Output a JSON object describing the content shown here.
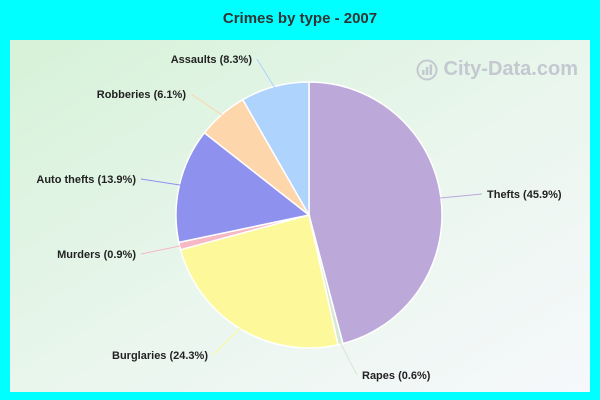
{
  "watermark": "City-Data.com",
  "chart_data": {
    "type": "pie",
    "title": "Crimes by type - 2007",
    "slices": [
      {
        "label": "Thefts (45.9%)",
        "value": 45.9,
        "color": "#bda8da"
      },
      {
        "label": "Rapes (0.6%)",
        "value": 0.6,
        "color": "#d7e8d2"
      },
      {
        "label": "Burglaries (24.3%)",
        "value": 24.3,
        "color": "#fdf99a"
      },
      {
        "label": "Murders (0.9%)",
        "value": 0.9,
        "color": "#f7b8c6"
      },
      {
        "label": "Auto thefts (13.9%)",
        "value": 13.9,
        "color": "#8f91ef"
      },
      {
        "label": "Robberies (6.1%)",
        "value": 6.1,
        "color": "#fdd6ab"
      },
      {
        "label": "Assaults (8.3%)",
        "value": 8.3,
        "color": "#aed4fd"
      }
    ],
    "start_angle": "12 o'clock",
    "direction": "clockwise"
  }
}
